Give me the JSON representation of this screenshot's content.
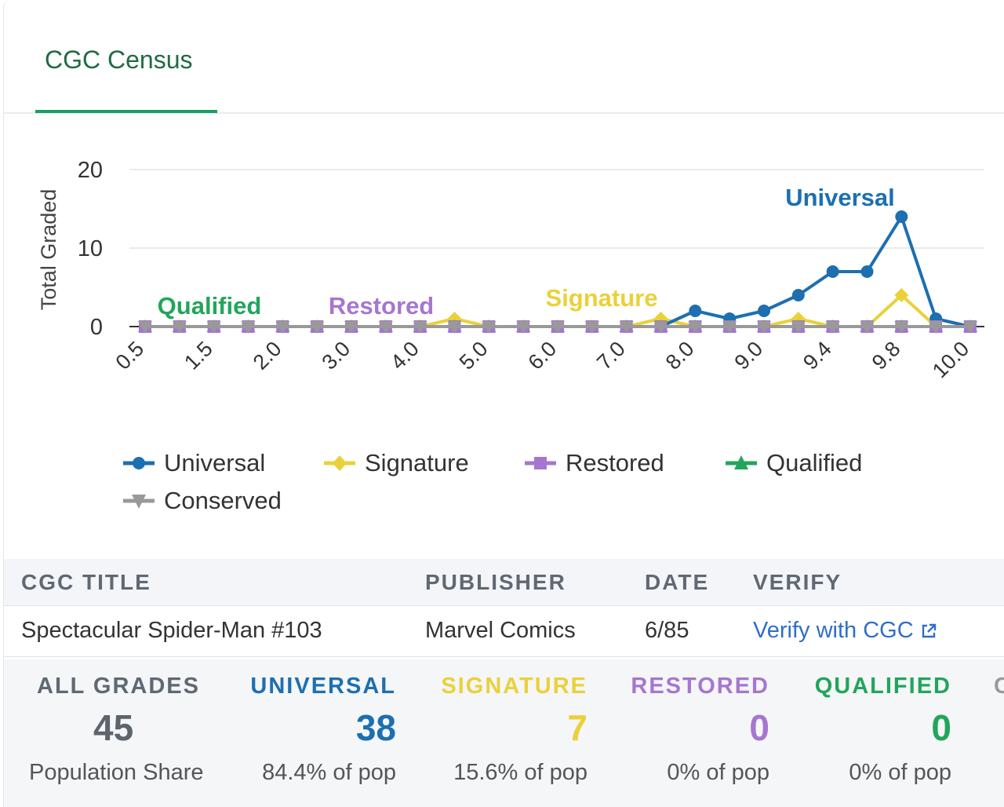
{
  "tab": {
    "label": "CGC Census"
  },
  "colors": {
    "universal": "#1d6fb0",
    "signature": "#ead139",
    "restored": "#a676cf",
    "qualified": "#22a55b",
    "conserved": "#999999",
    "tab_accent": "#17a062",
    "link": "#2f6ec9"
  },
  "chart_data": {
    "type": "line",
    "ylabel": "Total Graded",
    "xlabel": "",
    "ylim": [
      0,
      20
    ],
    "yticks": [
      0,
      10,
      20
    ],
    "grid": true,
    "legend_position": "bottom",
    "categories": [
      "0.5",
      "1.0",
      "1.5",
      "1.8",
      "2.0",
      "2.5",
      "3.0",
      "3.5",
      "4.0",
      "4.5",
      "5.0",
      "5.5",
      "6.0",
      "6.5",
      "7.0",
      "7.5",
      "8.0",
      "8.5",
      "9.0",
      "9.2",
      "9.4",
      "9.6",
      "9.8",
      "9.9",
      "10.0"
    ],
    "xtick_labels": [
      "0.5",
      "1.5",
      "2.0",
      "3.0",
      "4.0",
      "5.0",
      "6.0",
      "7.0",
      "8.0",
      "9.0",
      "9.4",
      "9.8",
      "10.0"
    ],
    "series": [
      {
        "name": "Universal",
        "marker": "circle",
        "values": [
          0,
          0,
          0,
          0,
          0,
          0,
          0,
          0,
          0,
          0,
          0,
          0,
          0,
          0,
          0,
          0,
          2,
          1,
          2,
          4,
          7,
          7,
          14,
          1,
          0
        ]
      },
      {
        "name": "Signature",
        "marker": "diamond",
        "values": [
          0,
          0,
          0,
          0,
          0,
          0,
          0,
          0,
          0,
          1,
          0,
          0,
          0,
          0,
          0,
          1,
          0,
          0,
          0,
          1,
          0,
          0,
          4,
          0,
          0
        ]
      },
      {
        "name": "Restored",
        "marker": "square",
        "values": [
          0,
          0,
          0,
          0,
          0,
          0,
          0,
          0,
          0,
          0,
          0,
          0,
          0,
          0,
          0,
          0,
          0,
          0,
          0,
          0,
          0,
          0,
          0,
          0,
          0
        ]
      },
      {
        "name": "Qualified",
        "marker": "triangle",
        "values": [
          0,
          0,
          0,
          0,
          0,
          0,
          0,
          0,
          0,
          0,
          0,
          0,
          0,
          0,
          0,
          0,
          0,
          0,
          0,
          0,
          0,
          0,
          0,
          0,
          0
        ]
      },
      {
        "name": "Conserved",
        "marker": "triangle-down",
        "values": [
          0,
          0,
          0,
          0,
          0,
          0,
          0,
          0,
          0,
          0,
          0,
          0,
          0,
          0,
          0,
          0,
          0,
          0,
          0,
          0,
          0,
          0,
          0,
          0,
          0
        ]
      }
    ],
    "annotations": [
      {
        "text": "Universal",
        "series": "Universal",
        "near_category": "9.8"
      },
      {
        "text": "Signature",
        "series": "Signature",
        "near_category": "6.5"
      },
      {
        "text": "Restored",
        "series": "Restored",
        "near_category": "3.0"
      },
      {
        "text": "Qualified",
        "series": "Qualified",
        "near_category": "1.5"
      }
    ]
  },
  "legend": [
    {
      "name": "Universal",
      "icon": "circle-marker-icon"
    },
    {
      "name": "Signature",
      "icon": "diamond-marker-icon"
    },
    {
      "name": "Restored",
      "icon": "square-marker-icon"
    },
    {
      "name": "Qualified",
      "icon": "triangle-marker-icon"
    },
    {
      "name": "Conserved",
      "icon": "triangle-down-marker-icon"
    }
  ],
  "info_table": {
    "headers": [
      "CGC TITLE",
      "PUBLISHER",
      "DATE",
      "VERIFY"
    ],
    "row": {
      "title": "Spectacular Spider-Man #103",
      "publisher": "Marvel Comics",
      "date": "6/85",
      "verify": "Verify with CGC",
      "verify_icon": "external-link-icon"
    }
  },
  "stats": [
    {
      "label": "ALL GRADES",
      "count": "45",
      "share": "Population Share"
    },
    {
      "label": "UNIVERSAL",
      "count": "38",
      "share": "84.4% of pop"
    },
    {
      "label": "SIGNATURE",
      "count": "7",
      "share": "15.6% of pop"
    },
    {
      "label": "RESTORED",
      "count": "0",
      "share": "0% of pop"
    },
    {
      "label": "QUALIFIED",
      "count": "0",
      "share": "0% of pop"
    },
    {
      "label": "C"
    }
  ]
}
